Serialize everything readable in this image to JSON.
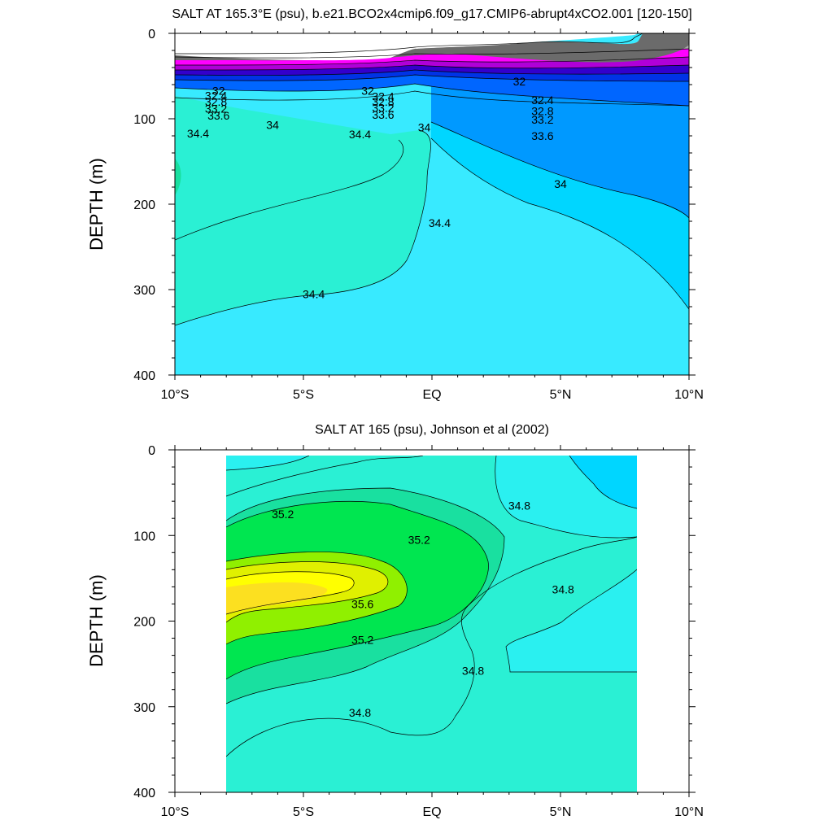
{
  "chart_data": [
    {
      "type": "contour",
      "title": "SALT AT 165.3°E (psu), b.e21.BCO2x4cmip6.f09_g17.CMIP6-abrupt4xCO2.001 [120-150]",
      "xlabel": "",
      "ylabel": "DEPTH (m)",
      "xlim": [
        -10,
        10
      ],
      "ylim": [
        400,
        0
      ],
      "x_ticks": [
        -10,
        -5,
        0,
        5,
        10
      ],
      "x_tick_labels": [
        "10°S",
        "5°S",
        "EQ",
        "5°N",
        "10°N"
      ],
      "y_ticks": [
        0,
        100,
        200,
        300,
        400
      ],
      "y_tick_labels": [
        "0",
        "100",
        "200",
        "300",
        "400"
      ],
      "units": "psu",
      "contour_labels": [
        {
          "text": "32",
          "lat": -8.3,
          "depth": 67
        },
        {
          "text": "32.4",
          "lat": -8.4,
          "depth": 73
        },
        {
          "text": "32.8",
          "lat": -8.4,
          "depth": 80
        },
        {
          "text": "33.2",
          "lat": -8.4,
          "depth": 88
        },
        {
          "text": "33.6",
          "lat": -8.3,
          "depth": 96
        },
        {
          "text": "34",
          "lat": -6.2,
          "depth": 107
        },
        {
          "text": "34.4",
          "lat": -9.1,
          "depth": 117
        },
        {
          "text": "32",
          "lat": -2.5,
          "depth": 67
        },
        {
          "text": "32.4",
          "lat": -1.9,
          "depth": 74
        },
        {
          "text": "32.8",
          "lat": -1.9,
          "depth": 80
        },
        {
          "text": "33.2",
          "lat": -1.9,
          "depth": 87
        },
        {
          "text": "33.6",
          "lat": -1.9,
          "depth": 95
        },
        {
          "text": "34.4",
          "lat": -2.8,
          "depth": 118
        },
        {
          "text": "34",
          "lat": -0.3,
          "depth": 110
        },
        {
          "text": "32",
          "lat": 3.4,
          "depth": 56
        },
        {
          "text": "32.4",
          "lat": 4.3,
          "depth": 78
        },
        {
          "text": "32.8",
          "lat": 4.3,
          "depth": 91
        },
        {
          "text": "33.2",
          "lat": 4.3,
          "depth": 101
        },
        {
          "text": "33.6",
          "lat": 4.3,
          "depth": 120
        },
        {
          "text": "34",
          "lat": 5.0,
          "depth": 176
        },
        {
          "text": "34.4",
          "lat": 0.3,
          "depth": 222
        },
        {
          "text": "34.4",
          "lat": -4.6,
          "depth": 305
        }
      ]
    },
    {
      "type": "contour",
      "title": "SALT AT 165 (psu), Johnson et al (2002)",
      "xlabel": "",
      "ylabel": "DEPTH (m)",
      "xlim": [
        -10,
        10
      ],
      "ylim": [
        400,
        0
      ],
      "data_lat_range": [
        -8,
        8
      ],
      "x_ticks": [
        -10,
        -5,
        0,
        5,
        10
      ],
      "x_tick_labels": [
        "10°S",
        "5°S",
        "EQ",
        "5°N",
        "10°N"
      ],
      "y_ticks": [
        0,
        100,
        200,
        300,
        400
      ],
      "y_tick_labels": [
        "0",
        "100",
        "200",
        "300",
        "400"
      ],
      "units": "psu",
      "contour_labels": [
        {
          "text": "35.2",
          "lat": -5.8,
          "depth": 75
        },
        {
          "text": "35.2",
          "lat": -0.5,
          "depth": 105
        },
        {
          "text": "34.8",
          "lat": 3.4,
          "depth": 65
        },
        {
          "text": "35.6",
          "lat": -2.7,
          "depth": 180
        },
        {
          "text": "34.8",
          "lat": 5.1,
          "depth": 163
        },
        {
          "text": "35.2",
          "lat": -2.7,
          "depth": 222
        },
        {
          "text": "34.8",
          "lat": 1.6,
          "depth": 258
        },
        {
          "text": "34.8",
          "lat": -2.8,
          "depth": 307
        }
      ]
    }
  ]
}
